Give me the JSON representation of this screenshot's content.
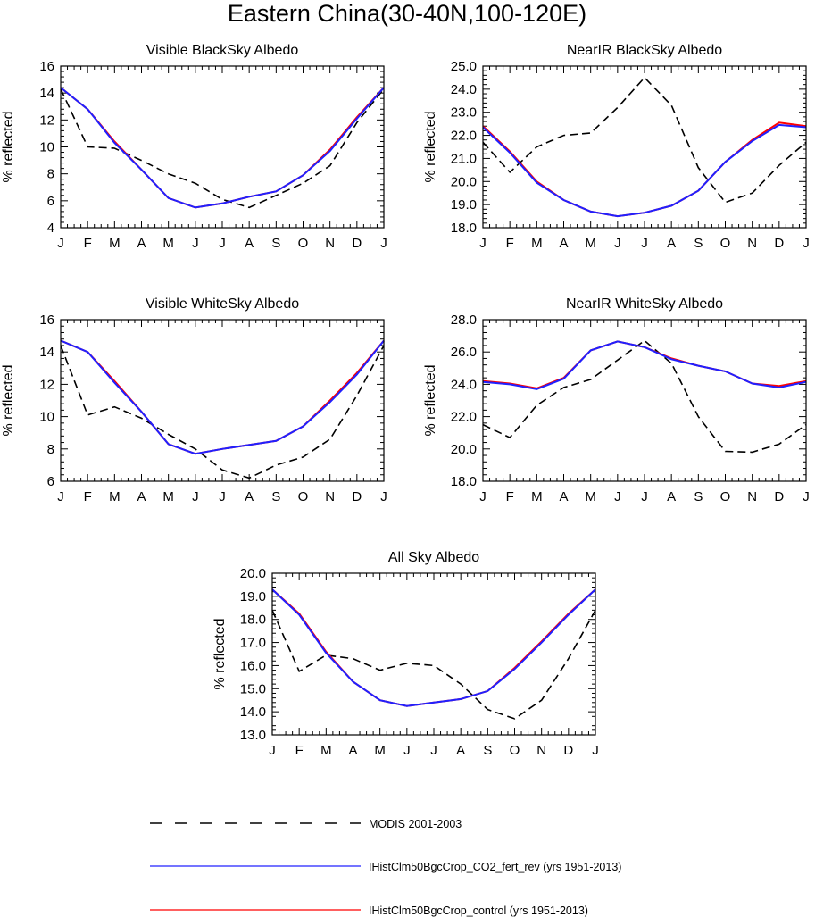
{
  "figure": {
    "title": "Eastern China(30-40N,100-120E)"
  },
  "legend": {
    "entries": [
      {
        "label": "MODIS 2001-2003",
        "color": "#000000",
        "dash": "dashed"
      },
      {
        "label": "IHistClm50BgcCrop_CO2_fert_rev (yrs 1951-2013)",
        "color": "#2020ff",
        "dash": "solid"
      },
      {
        "label": "IHistClm50BgcCrop_control (yrs 1951-2013)",
        "color": "#ff0000",
        "dash": "solid"
      }
    ]
  },
  "chart_data": [
    {
      "type": "line",
      "title": "Visible BlackSky Albedo",
      "ylabel": "% reflected",
      "xlabel": "",
      "categories": [
        "J",
        "F",
        "M",
        "A",
        "M",
        "J",
        "J",
        "A",
        "S",
        "O",
        "N",
        "D",
        "J"
      ],
      "ylim": [
        4,
        16
      ],
      "yticks": [
        "4",
        "6",
        "8",
        "10",
        "12",
        "14",
        "16"
      ],
      "grid": false,
      "series": [
        {
          "name": "MODIS 2001-2003",
          "color": "#000000",
          "dash": "dashed",
          "values": [
            14.3,
            10.0,
            9.9,
            9.0,
            8.0,
            7.3,
            6.1,
            5.5,
            6.4,
            7.3,
            8.6,
            11.8,
            14.3
          ]
        },
        {
          "name": "IHistClm50BgcCrop_control (yrs 1951-2013)",
          "color": "#ff0000",
          "dash": "solid",
          "values": [
            14.4,
            12.8,
            10.4,
            8.3,
            6.2,
            5.5,
            5.8,
            6.3,
            6.7,
            7.9,
            9.8,
            12.2,
            14.4
          ]
        },
        {
          "name": "IHistClm50BgcCrop_CO2_fert_rev (yrs 1951-2013)",
          "color": "#2020ff",
          "dash": "solid",
          "values": [
            14.4,
            12.8,
            10.3,
            8.3,
            6.2,
            5.5,
            5.8,
            6.3,
            6.7,
            7.9,
            9.7,
            12.1,
            14.4
          ]
        }
      ]
    },
    {
      "type": "line",
      "title": "NearIR BlackSky Albedo",
      "ylabel": "% reflected",
      "xlabel": "",
      "categories": [
        "J",
        "F",
        "M",
        "A",
        "M",
        "J",
        "J",
        "A",
        "S",
        "O",
        "N",
        "D",
        "J"
      ],
      "ylim": [
        18,
        25
      ],
      "yticks": [
        "18.0",
        "19.0",
        "20.0",
        "21.0",
        "22.0",
        "23.0",
        "24.0",
        "25.0"
      ],
      "grid": false,
      "series": [
        {
          "name": "MODIS 2001-2003",
          "color": "#000000",
          "dash": "dashed",
          "values": [
            21.7,
            20.4,
            21.5,
            22.0,
            22.1,
            23.2,
            24.5,
            23.3,
            20.6,
            19.1,
            19.5,
            20.7,
            21.7
          ]
        },
        {
          "name": "IHistClm50BgcCrop_control (yrs 1951-2013)",
          "color": "#ff0000",
          "dash": "solid",
          "values": [
            22.4,
            21.3,
            20.0,
            19.2,
            18.7,
            18.5,
            18.65,
            18.95,
            19.6,
            20.85,
            21.8,
            22.55,
            22.4
          ]
        },
        {
          "name": "IHistClm50BgcCrop_CO2_fert_rev (yrs 1951-2013)",
          "color": "#2020ff",
          "dash": "solid",
          "values": [
            22.35,
            21.25,
            19.95,
            19.2,
            18.7,
            18.5,
            18.65,
            18.95,
            19.6,
            20.85,
            21.75,
            22.45,
            22.35
          ]
        }
      ]
    },
    {
      "type": "line",
      "title": "Visible WhiteSky Albedo",
      "ylabel": "% reflected",
      "xlabel": "",
      "categories": [
        "J",
        "F",
        "M",
        "A",
        "M",
        "J",
        "J",
        "A",
        "S",
        "O",
        "N",
        "D",
        "J"
      ],
      "ylim": [
        6,
        16
      ],
      "yticks": [
        "6",
        "8",
        "10",
        "12",
        "14",
        "16"
      ],
      "grid": false,
      "series": [
        {
          "name": "MODIS 2001-2003",
          "color": "#000000",
          "dash": "dashed",
          "values": [
            14.4,
            10.1,
            10.6,
            9.9,
            8.9,
            8.0,
            6.7,
            6.2,
            7.0,
            7.5,
            8.6,
            11.3,
            14.4
          ]
        },
        {
          "name": "IHistClm50BgcCrop_control (yrs 1951-2013)",
          "color": "#ff0000",
          "dash": "solid",
          "values": [
            14.7,
            14.0,
            12.2,
            10.3,
            8.3,
            7.7,
            8.0,
            8.25,
            8.5,
            9.4,
            11.0,
            12.7,
            14.7
          ]
        },
        {
          "name": "IHistClm50BgcCrop_CO2_fert_rev (yrs 1951-2013)",
          "color": "#2020ff",
          "dash": "solid",
          "values": [
            14.7,
            14.0,
            12.1,
            10.3,
            8.3,
            7.7,
            8.0,
            8.25,
            8.5,
            9.4,
            10.9,
            12.6,
            14.7
          ]
        }
      ]
    },
    {
      "type": "line",
      "title": "NearIR WhiteSky Albedo",
      "ylabel": "% reflected",
      "xlabel": "",
      "categories": [
        "J",
        "F",
        "M",
        "A",
        "M",
        "J",
        "J",
        "A",
        "S",
        "O",
        "N",
        "D",
        "J"
      ],
      "ylim": [
        18,
        28
      ],
      "yticks": [
        "18.0",
        "20.0",
        "22.0",
        "24.0",
        "26.0",
        "28.0"
      ],
      "grid": false,
      "series": [
        {
          "name": "MODIS 2001-2003",
          "color": "#000000",
          "dash": "dashed",
          "values": [
            21.5,
            20.7,
            22.7,
            23.8,
            24.3,
            25.5,
            26.7,
            25.3,
            22.0,
            19.85,
            19.8,
            20.3,
            21.5
          ]
        },
        {
          "name": "IHistClm50BgcCrop_control (yrs 1951-2013)",
          "color": "#ff0000",
          "dash": "solid",
          "values": [
            24.2,
            24.05,
            23.75,
            24.4,
            26.1,
            26.65,
            26.3,
            25.6,
            25.15,
            24.8,
            24.05,
            23.9,
            24.2
          ]
        },
        {
          "name": "IHistClm50BgcCrop_CO2_fert_rev (yrs 1951-2013)",
          "color": "#2020ff",
          "dash": "solid",
          "values": [
            24.15,
            24.0,
            23.7,
            24.35,
            26.1,
            26.65,
            26.3,
            25.55,
            25.15,
            24.8,
            24.05,
            23.8,
            24.15
          ]
        }
      ]
    },
    {
      "type": "line",
      "title": "All Sky Albedo",
      "ylabel": "% reflected",
      "xlabel": "",
      "categories": [
        "J",
        "F",
        "M",
        "A",
        "M",
        "J",
        "J",
        "A",
        "S",
        "O",
        "N",
        "D",
        "J"
      ],
      "ylim": [
        13,
        20
      ],
      "yticks": [
        "13.0",
        "14.0",
        "15.0",
        "16.0",
        "17.0",
        "18.0",
        "19.0",
        "20.0"
      ],
      "grid": false,
      "series": [
        {
          "name": "MODIS 2001-2003",
          "color": "#000000",
          "dash": "dashed",
          "values": [
            18.4,
            15.75,
            16.45,
            16.3,
            15.8,
            16.1,
            16.0,
            15.2,
            14.1,
            13.7,
            14.5,
            16.3,
            18.4
          ]
        },
        {
          "name": "IHistClm50BgcCrop_control (yrs 1951-2013)",
          "color": "#ff0000",
          "dash": "solid",
          "values": [
            19.3,
            18.25,
            16.6,
            15.3,
            14.5,
            14.25,
            14.4,
            14.55,
            14.9,
            15.9,
            17.05,
            18.25,
            19.3
          ]
        },
        {
          "name": "IHistClm50BgcCrop_CO2_fert_rev (yrs 1951-2013)",
          "color": "#2020ff",
          "dash": "solid",
          "values": [
            19.3,
            18.2,
            16.55,
            15.3,
            14.5,
            14.25,
            14.4,
            14.55,
            14.9,
            15.85,
            17.0,
            18.2,
            19.3
          ]
        }
      ]
    }
  ]
}
